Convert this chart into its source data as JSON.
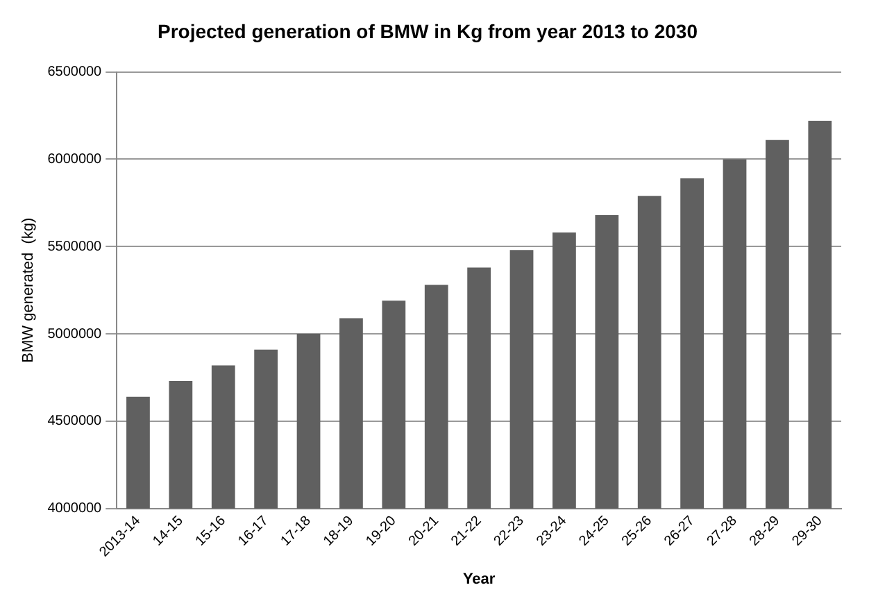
{
  "chart_data": {
    "type": "bar",
    "title": "Projected generation of BMW in Kg from year 2013 to 2030",
    "xlabel": "Year",
    "ylabel": "BMW generated  (kg)",
    "categories": [
      "2013-14",
      "14-15",
      "15-16",
      "16-17",
      "17-18",
      "18-19",
      "19-20",
      "20-21",
      "21-22",
      "22-23",
      "23-24",
      "24-25",
      "25-26",
      "26-27",
      "27-28",
      "28-29",
      "29-30"
    ],
    "values": [
      4640000,
      4730000,
      4820000,
      4910000,
      5000000,
      5090000,
      5190000,
      5280000,
      5380000,
      5480000,
      5580000,
      5680000,
      5790000,
      5890000,
      6000000,
      6110000,
      6220000
    ],
    "color": "#606060",
    "ylim": [
      4000000,
      6500000
    ],
    "yticks": [
      4000000,
      4500000,
      5000000,
      5500000,
      6000000,
      6500000
    ],
    "grid": "y"
  }
}
